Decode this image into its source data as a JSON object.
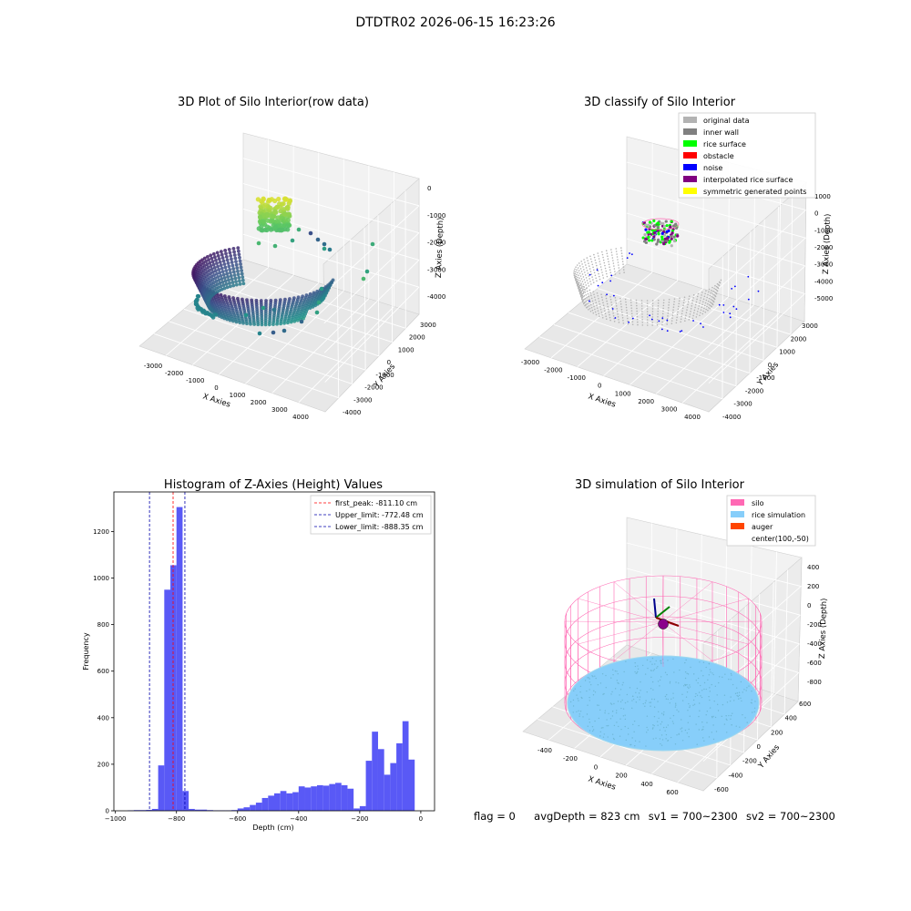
{
  "window": {
    "suptitle": "DTDTR02 2026-06-15 16:23:26"
  },
  "status": {
    "flag": "flag = 0",
    "avg_depth": "avgDepth = 823 cm",
    "sv1": "sv1 = 700~2300",
    "sv2": "sv2 = 700~2300"
  },
  "chart_data": [
    {
      "type": "scatter",
      "title": "3D Plot of Silo Interior(row data)",
      "xlabel": "X Axies",
      "ylabel": "Y Axies",
      "zlabel": "Z Axies (Depth)",
      "xticks": [
        "-3000",
        "-2000",
        "-1000",
        "0",
        "1000",
        "2000",
        "3000",
        "4000"
      ],
      "yticks": [
        "-4000",
        "-3000",
        "-2000",
        "-1000",
        "0",
        "1000",
        "2000",
        "3000"
      ],
      "zticks": [
        "0",
        "-1000",
        "-2000",
        "-3000",
        "-4000"
      ],
      "xlim": [
        -3300,
        4200
      ],
      "ylim": [
        -4300,
        3500
      ],
      "zlim": [
        -4500,
        300
      ],
      "colormap": "viridis"
    },
    {
      "type": "scatter",
      "title": "3D classify of Silo Interior",
      "xlabel": "X Axies",
      "ylabel": "Y Axies",
      "zlabel": "Z Axies (Depth)",
      "xticks": [
        "-3000",
        "-2000",
        "-1000",
        "0",
        "1000",
        "2000",
        "3000",
        "4000"
      ],
      "yticks": [
        "-4000",
        "-3000",
        "-2000",
        "-1000",
        "0",
        "1000",
        "2000",
        "3000"
      ],
      "zticks": [
        "1000",
        "0",
        "-1000",
        "-2000",
        "-3000",
        "-4000",
        "-5000"
      ],
      "legend": [
        {
          "label": "original data",
          "color": "#b3b3b3"
        },
        {
          "label": "inner wall",
          "color": "#808080"
        },
        {
          "label": "rice surface",
          "color": "#00ff00"
        },
        {
          "label": "obstacle",
          "color": "#ff0000"
        },
        {
          "label": "noise",
          "color": "#0000ff"
        },
        {
          "label": "interpolated rice surface",
          "color": "#800080"
        },
        {
          "label": "symmetric generated points",
          "color": "#ffff00"
        }
      ],
      "legend_position": "top-right"
    },
    {
      "type": "bar",
      "title": "Histogram of Z-Axies (Height) Values",
      "xlabel": "Depth (cm)",
      "ylabel": "Frequency",
      "xlim": [
        -1005,
        45
      ],
      "ylim": [
        0,
        1370
      ],
      "xticks": [
        -1000,
        -800,
        -600,
        -400,
        -200,
        0
      ],
      "yticks": [
        0,
        200,
        400,
        600,
        800,
        1000,
        1200
      ],
      "bar_color": "#5050f5",
      "bin_width": 20,
      "bin_starts": [
        -960,
        -940,
        -920,
        -900,
        -880,
        -860,
        -840,
        -820,
        -800,
        -780,
        -760,
        -740,
        -720,
        -700,
        -680,
        -660,
        -640,
        -620,
        -600,
        -580,
        -560,
        -540,
        -520,
        -500,
        -480,
        -460,
        -440,
        -420,
        -400,
        -380,
        -360,
        -340,
        -320,
        -300,
        -280,
        -260,
        -240,
        -220,
        -200,
        -180,
        -160,
        -140,
        -120,
        -100,
        -80,
        -60,
        -40,
        -20
      ],
      "values": [
        2,
        3,
        3,
        4,
        8,
        195,
        950,
        1055,
        1305,
        85,
        8,
        5,
        5,
        3,
        2,
        2,
        2,
        3,
        10,
        15,
        25,
        35,
        55,
        65,
        75,
        85,
        75,
        80,
        105,
        100,
        105,
        110,
        108,
        115,
        120,
        110,
        95,
        10,
        20,
        215,
        340,
        265,
        155,
        205,
        290,
        385,
        220,
        0
      ],
      "vlines": [
        {
          "label": "first_peak: -811.10 cm",
          "x": -811.1,
          "color": "#ff0000"
        },
        {
          "label": "Upper_limit: -772.48 cm",
          "x": -772.48,
          "color": "#0000aa"
        },
        {
          "label": "Lower_limit: -888.35 cm",
          "x": -888.35,
          "color": "#0000aa"
        }
      ],
      "legend_position": "top-right"
    },
    {
      "type": "scatter",
      "title": "3D simulation of Silo Interior",
      "xlabel": "X Axies",
      "ylabel": "Y Axies",
      "zlabel": "Z Axies (Depth)",
      "xticks": [
        "-400",
        "-200",
        "0",
        "200",
        "400",
        "600"
      ],
      "yticks": [
        "-600",
        "-400",
        "-200",
        "0",
        "200",
        "400",
        "600"
      ],
      "zticks": [
        "400",
        "200",
        "0",
        "-200",
        "-400",
        "-600",
        "-800"
      ],
      "legend": [
        {
          "label": "silo",
          "color": "#ff69b4"
        },
        {
          "label": "rice simulation",
          "color": "#87cefa"
        },
        {
          "label": "auger",
          "color": "#ff4500"
        },
        {
          "label": "center(100,-50)",
          "color": ""
        }
      ],
      "legend_position": "top-right"
    }
  ]
}
